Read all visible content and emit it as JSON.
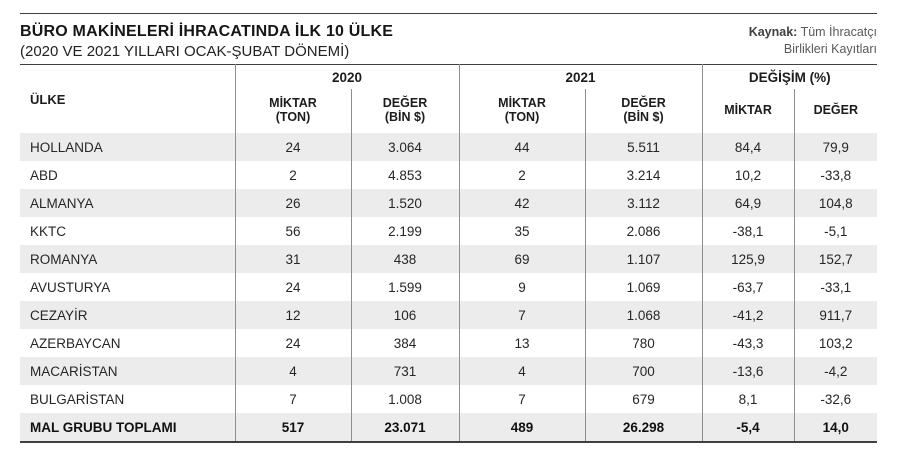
{
  "header": {
    "title": "BÜRO MAKİNELERİ İHRACATINDA İLK 10 ÜLKE",
    "subtitle": "(2020 VE 2021 YILLARI OCAK-ŞUBAT DÖNEMİ)",
    "source_label": "Kaynak:",
    "source_line1": "Tüm İhracatçı",
    "source_line2": "Birlikleri Kayıtları"
  },
  "colors": {
    "rule_dark": "#404040",
    "grid_gray": "#8e8e8e",
    "alt_row_bg": "#ececec",
    "text": "#231f20",
    "source_text": "#58595b"
  },
  "chart_data": {
    "type": "table",
    "title": "BÜRO MAKİNELERİ İHRACATINDA İLK 10 ÜLKE",
    "subtitle": "(2020 VE 2021 YILLARI OCAK-ŞUBAT DÖNEMİ)",
    "source": "Kaynak: Tüm İhracatçı Birlikleri Kayıtları",
    "country_header": "ÜLKE",
    "column_groups": [
      {
        "label": "2020",
        "sub": [
          [
            "MİKTAR",
            "(TON)"
          ],
          [
            "DEĞER",
            "(BİN $)"
          ]
        ]
      },
      {
        "label": "2021",
        "sub": [
          [
            "MİKTAR",
            "(TON)"
          ],
          [
            "DEĞER",
            "(BİN $)"
          ]
        ]
      },
      {
        "label": "DEĞİŞİM (%)",
        "sub": [
          [
            "MİKTAR",
            ""
          ],
          [
            "DEĞER",
            ""
          ]
        ]
      }
    ],
    "rows": [
      {
        "country": "HOLLANDA",
        "values": [
          "24",
          "3.064",
          "44",
          "5.511",
          "84,4",
          "79,9"
        ]
      },
      {
        "country": "ABD",
        "values": [
          "2",
          "4.853",
          "2",
          "3.214",
          "10,2",
          "-33,8"
        ]
      },
      {
        "country": "ALMANYA",
        "values": [
          "26",
          "1.520",
          "42",
          "3.112",
          "64,9",
          "104,8"
        ]
      },
      {
        "country": "KKTC",
        "values": [
          "56",
          "2.199",
          "35",
          "2.086",
          "-38,1",
          "-5,1"
        ]
      },
      {
        "country": "ROMANYA",
        "values": [
          "31",
          "438",
          "69",
          "1.107",
          "125,9",
          "152,7"
        ]
      },
      {
        "country": "AVUSTURYA",
        "values": [
          "24",
          "1.599",
          "9",
          "1.069",
          "-63,7",
          "-33,1"
        ]
      },
      {
        "country": "CEZAYİR",
        "values": [
          "12",
          "106",
          "7",
          "1.068",
          "-41,2",
          "911,7"
        ]
      },
      {
        "country": "AZERBAYCAN",
        "values": [
          "24",
          "384",
          "13",
          "780",
          "-43,3",
          "103,2"
        ]
      },
      {
        "country": "MACARİSTAN",
        "values": [
          "4",
          "731",
          "4",
          "700",
          "-13,6",
          "-4,2"
        ]
      },
      {
        "country": "BULGARİSTAN",
        "values": [
          "7",
          "1.008",
          "7",
          "679",
          "8,1",
          "-32,6"
        ]
      }
    ],
    "total": {
      "country": "MAL GRUBU TOPLAMI",
      "values": [
        "517",
        "23.071",
        "489",
        "26.298",
        "-5,4",
        "14,0"
      ]
    }
  }
}
